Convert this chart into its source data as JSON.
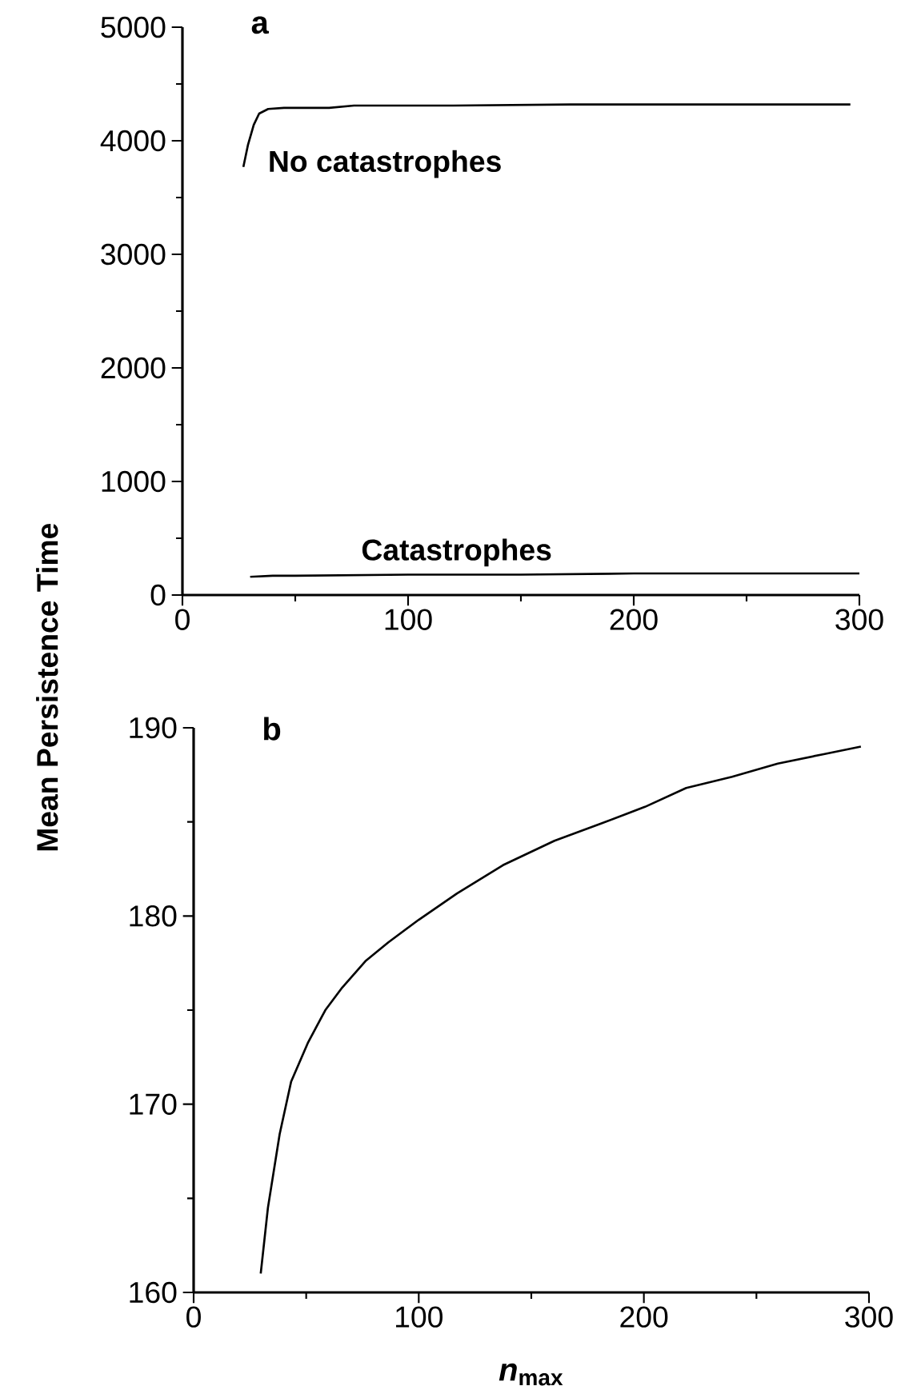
{
  "chart_data": [
    {
      "type": "line",
      "title": "a",
      "ylabel": "Mean Persistence Time",
      "xlim": [
        0,
        300
      ],
      "ylim": [
        0,
        5000
      ],
      "xticks": [
        0,
        100,
        200,
        300
      ],
      "yticks": [
        0,
        1000,
        2000,
        3000,
        4000,
        5000
      ],
      "series": [
        {
          "name": "No catastrophes",
          "color": "#000000",
          "x": [
            27,
            29,
            31.6,
            34,
            38,
            45,
            65,
            76,
            120,
            172,
            223,
            296
          ],
          "values": [
            3770,
            3960,
            4140,
            4240,
            4280,
            4290,
            4290,
            4310,
            4310,
            4320,
            4320,
            4320
          ]
        },
        {
          "name": "Catastrophes",
          "color": "#000000",
          "x": [
            30,
            40,
            50,
            100,
            150,
            200,
            250,
            300
          ],
          "values": [
            160,
            170,
            170,
            180,
            180,
            190,
            190,
            190
          ]
        }
      ]
    },
    {
      "type": "line",
      "title": "b",
      "xlabel": "*n*$_{max}$",
      "xlim": [
        0,
        300
      ],
      "ylim": [
        160,
        190
      ],
      "xticks": [
        0,
        100,
        200,
        300
      ],
      "yticks": [
        160,
        170,
        180,
        190
      ],
      "series": [
        {
          "color": "#000000",
          "x": [
            29.8,
            33,
            38.2,
            43.3,
            50.9,
            58.5,
            66,
            76.3,
            86.5,
            100,
            117,
            137.4,
            160.3,
            180.7,
            200.5,
            218.8,
            239.2,
            259.5,
            279.9,
            296.4
          ],
          "values": [
            161.0,
            164.5,
            168.4,
            171.2,
            173.3,
            175.0,
            176.2,
            177.6,
            178.6,
            179.8,
            181.2,
            182.7,
            184.0,
            184.9,
            185.8,
            186.8,
            187.4,
            188.1,
            188.6,
            189.0
          ]
        }
      ]
    }
  ]
}
